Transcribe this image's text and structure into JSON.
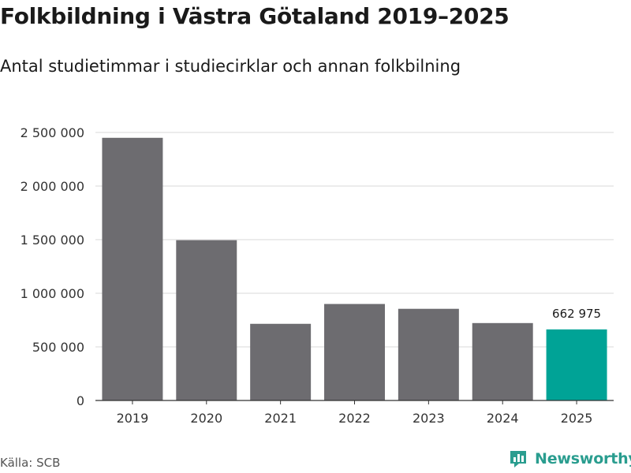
{
  "title": "Folkbildning i Västra Götaland 2019–2025",
  "subtitle": "Antal studietimmar i studiecirklar och annan folkbilning",
  "source": "Källa: SCB",
  "brand": {
    "name": "Newsworthy",
    "icon": "newsworthy-logo-icon"
  },
  "colors": {
    "bar": "#6d6c70",
    "highlight": "#00a396",
    "grid": "#d9d9d9",
    "axis": "#333333",
    "brand": "#2a9d8f"
  },
  "chart_data": {
    "type": "bar",
    "title": "Folkbildning i Västra Götaland 2019–2025",
    "subtitle": "Antal studietimmar i studiecirklar och annan folkbilning",
    "xlabel": "",
    "ylabel": "",
    "categories": [
      "2019",
      "2020",
      "2021",
      "2022",
      "2023",
      "2024",
      "2025"
    ],
    "values": [
      2450000,
      1495000,
      715000,
      900000,
      855000,
      722000,
      662975
    ],
    "highlight_index": 6,
    "data_labels": [
      {
        "index": 6,
        "text": "662 975"
      }
    ],
    "ylim": [
      0,
      2500000
    ],
    "yticks": [
      {
        "value": 0,
        "label": "0"
      },
      {
        "value": 500000,
        "label": "500 000"
      },
      {
        "value": 1000000,
        "label": "1 000 000"
      },
      {
        "value": 1500000,
        "label": "1 500 000"
      },
      {
        "value": 2000000,
        "label": "2 000 000"
      },
      {
        "value": 2500000,
        "label": "2 500 000"
      }
    ],
    "grid": true,
    "legend": "none"
  }
}
